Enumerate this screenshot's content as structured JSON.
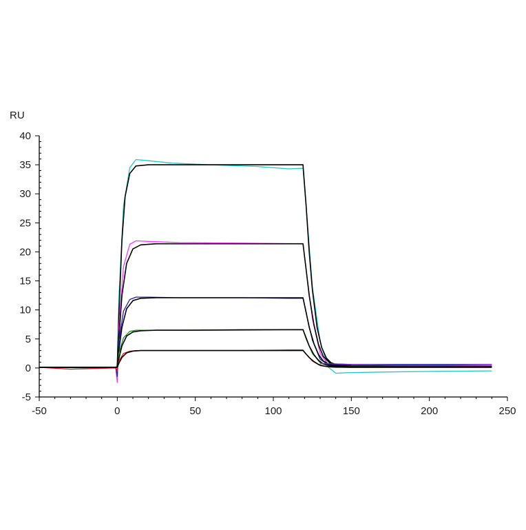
{
  "chart_data": {
    "type": "line",
    "title": "",
    "xlabel": "",
    "ylabel": "RU",
    "xlim": [
      -50,
      250
    ],
    "ylim": [
      -5,
      40
    ],
    "x_ticks": [
      -50,
      0,
      50,
      100,
      150,
      200,
      250
    ],
    "y_ticks": [
      -5,
      0,
      5,
      10,
      15,
      20,
      25,
      30,
      35,
      40
    ],
    "x_tick_labels": [
      "-50",
      "0",
      "50",
      "100",
      "150",
      "200",
      "250"
    ],
    "y_tick_labels": [
      "-5",
      "0",
      "5",
      "10",
      "15",
      "20",
      "25",
      "30",
      "35",
      "40"
    ],
    "grid": false,
    "legend": "none",
    "series": [
      {
        "color": "#1fc7c7",
        "x": [
          -50,
          -10,
          -1,
          0,
          1,
          4,
          8,
          12,
          20,
          35,
          60,
          90,
          110,
          119,
          121,
          125,
          130,
          135,
          140,
          150,
          170,
          200,
          240
        ],
        "y": [
          0.1,
          0.0,
          0.1,
          0.5,
          12.0,
          28.0,
          34.5,
          35.9,
          35.7,
          35.3,
          35.0,
          34.7,
          34.3,
          34.4,
          28.0,
          14.0,
          4.5,
          0.2,
          -0.9,
          -0.8,
          -0.7,
          -0.6,
          -0.5
        ]
      },
      {
        "color": "#000000",
        "x": [
          -50,
          -1,
          0,
          1,
          3,
          5,
          8,
          12,
          20,
          40,
          80,
          119,
          121,
          123,
          125,
          128,
          131,
          134,
          137,
          140,
          150,
          200,
          240
        ],
        "y": [
          0.1,
          0.1,
          0.1,
          9.0,
          22.0,
          29.5,
          33.5,
          34.8,
          35.0,
          35.0,
          35.0,
          35.0,
          28.0,
          20.0,
          13.5,
          7.0,
          3.5,
          1.7,
          0.9,
          0.6,
          0.4,
          0.3,
          0.3
        ]
      },
      {
        "color": "#ff33ff",
        "x": [
          -50,
          -1,
          0,
          1,
          4,
          8,
          12,
          20,
          40,
          80,
          110,
          119,
          121,
          125,
          130,
          135,
          140,
          150,
          200,
          240
        ],
        "y": [
          0.1,
          0.1,
          -2.5,
          7.0,
          17.5,
          21.3,
          21.9,
          21.8,
          21.6,
          21.5,
          21.4,
          21.4,
          17.0,
          8.5,
          2.5,
          0.6,
          0.5,
          0.4,
          0.4,
          0.4
        ]
      },
      {
        "color": "#000000",
        "x": [
          -50,
          -1,
          0,
          1,
          3,
          6,
          10,
          15,
          25,
          50,
          119,
          121,
          123,
          126,
          129,
          132,
          136,
          140,
          150,
          200,
          240
        ],
        "y": [
          0.1,
          0.1,
          0.1,
          5.0,
          12.5,
          18.0,
          20.5,
          21.2,
          21.4,
          21.4,
          21.4,
          17.0,
          12.5,
          7.5,
          4.0,
          2.0,
          0.9,
          0.5,
          0.4,
          0.3,
          0.3
        ]
      },
      {
        "color": "#1f1fb0",
        "x": [
          -50,
          -1,
          0,
          1,
          4,
          8,
          12,
          20,
          40,
          80,
          110,
          119,
          121,
          125,
          130,
          135,
          140,
          150,
          200,
          240
        ],
        "y": [
          0.1,
          0.1,
          -1.5,
          4.5,
          9.8,
          11.8,
          12.2,
          12.2,
          12.1,
          12.1,
          12.0,
          12.0,
          9.5,
          4.8,
          1.5,
          0.6,
          0.7,
          0.6,
          0.6,
          0.6
        ]
      },
      {
        "color": "#000000",
        "x": [
          -50,
          -1,
          0,
          1,
          3,
          6,
          10,
          15,
          25,
          50,
          119,
          121,
          123,
          126,
          129,
          132,
          136,
          140,
          150,
          200,
          240
        ],
        "y": [
          0.1,
          0.1,
          0.1,
          3.0,
          7.0,
          10.2,
          11.6,
          12.0,
          12.1,
          12.1,
          12.1,
          9.6,
          7.0,
          4.2,
          2.3,
          1.2,
          0.6,
          0.4,
          0.3,
          0.3,
          0.3
        ]
      },
      {
        "color": "#1a8a1a",
        "x": [
          -50,
          -1,
          0,
          1,
          4,
          8,
          12,
          20,
          40,
          80,
          110,
          119,
          121,
          125,
          130,
          135,
          140,
          150,
          200,
          240
        ],
        "y": [
          0.1,
          0.1,
          -0.5,
          2.5,
          5.2,
          6.3,
          6.5,
          6.5,
          6.5,
          6.6,
          6.6,
          6.6,
          5.0,
          2.5,
          0.9,
          0.4,
          0.3,
          0.3,
          0.3,
          0.3
        ]
      },
      {
        "color": "#000000",
        "x": [
          -50,
          -1,
          0,
          1,
          3,
          6,
          10,
          15,
          25,
          50,
          119,
          121,
          123,
          126,
          129,
          132,
          136,
          140,
          150,
          200,
          240
        ],
        "y": [
          0.1,
          0.1,
          0.1,
          1.6,
          3.8,
          5.5,
          6.2,
          6.4,
          6.5,
          6.5,
          6.6,
          5.2,
          3.8,
          2.3,
          1.3,
          0.7,
          0.4,
          0.3,
          0.2,
          0.2,
          0.2
        ]
      },
      {
        "color": "#cc1a1a",
        "x": [
          -50,
          -30,
          -1,
          0,
          1,
          4,
          8,
          12,
          20,
          40,
          80,
          110,
          119,
          121,
          125,
          130,
          135,
          140,
          150,
          200,
          240
        ],
        "y": [
          0.1,
          -0.2,
          0.0,
          -0.3,
          1.2,
          2.5,
          2.9,
          3.0,
          3.0,
          3.0,
          3.0,
          3.1,
          3.1,
          2.4,
          1.2,
          0.4,
          0.2,
          0.1,
          0.1,
          0.1,
          0.1
        ]
      },
      {
        "color": "#000000",
        "x": [
          -50,
          -1,
          0,
          1,
          3,
          6,
          10,
          15,
          25,
          50,
          119,
          121,
          123,
          126,
          129,
          132,
          136,
          140,
          150,
          200,
          240
        ],
        "y": [
          0.1,
          0.1,
          0.1,
          0.8,
          1.8,
          2.6,
          2.9,
          3.0,
          3.0,
          3.0,
          3.0,
          2.4,
          1.8,
          1.1,
          0.6,
          0.35,
          0.2,
          0.15,
          0.1,
          0.1,
          0.1
        ]
      },
      {
        "color": "#7a2ad0",
        "x": [
          130,
          140,
          150,
          180,
          210,
          240
        ],
        "y": [
          0.8,
          0.7,
          0.6,
          0.5,
          0.5,
          0.6
        ]
      }
    ]
  }
}
